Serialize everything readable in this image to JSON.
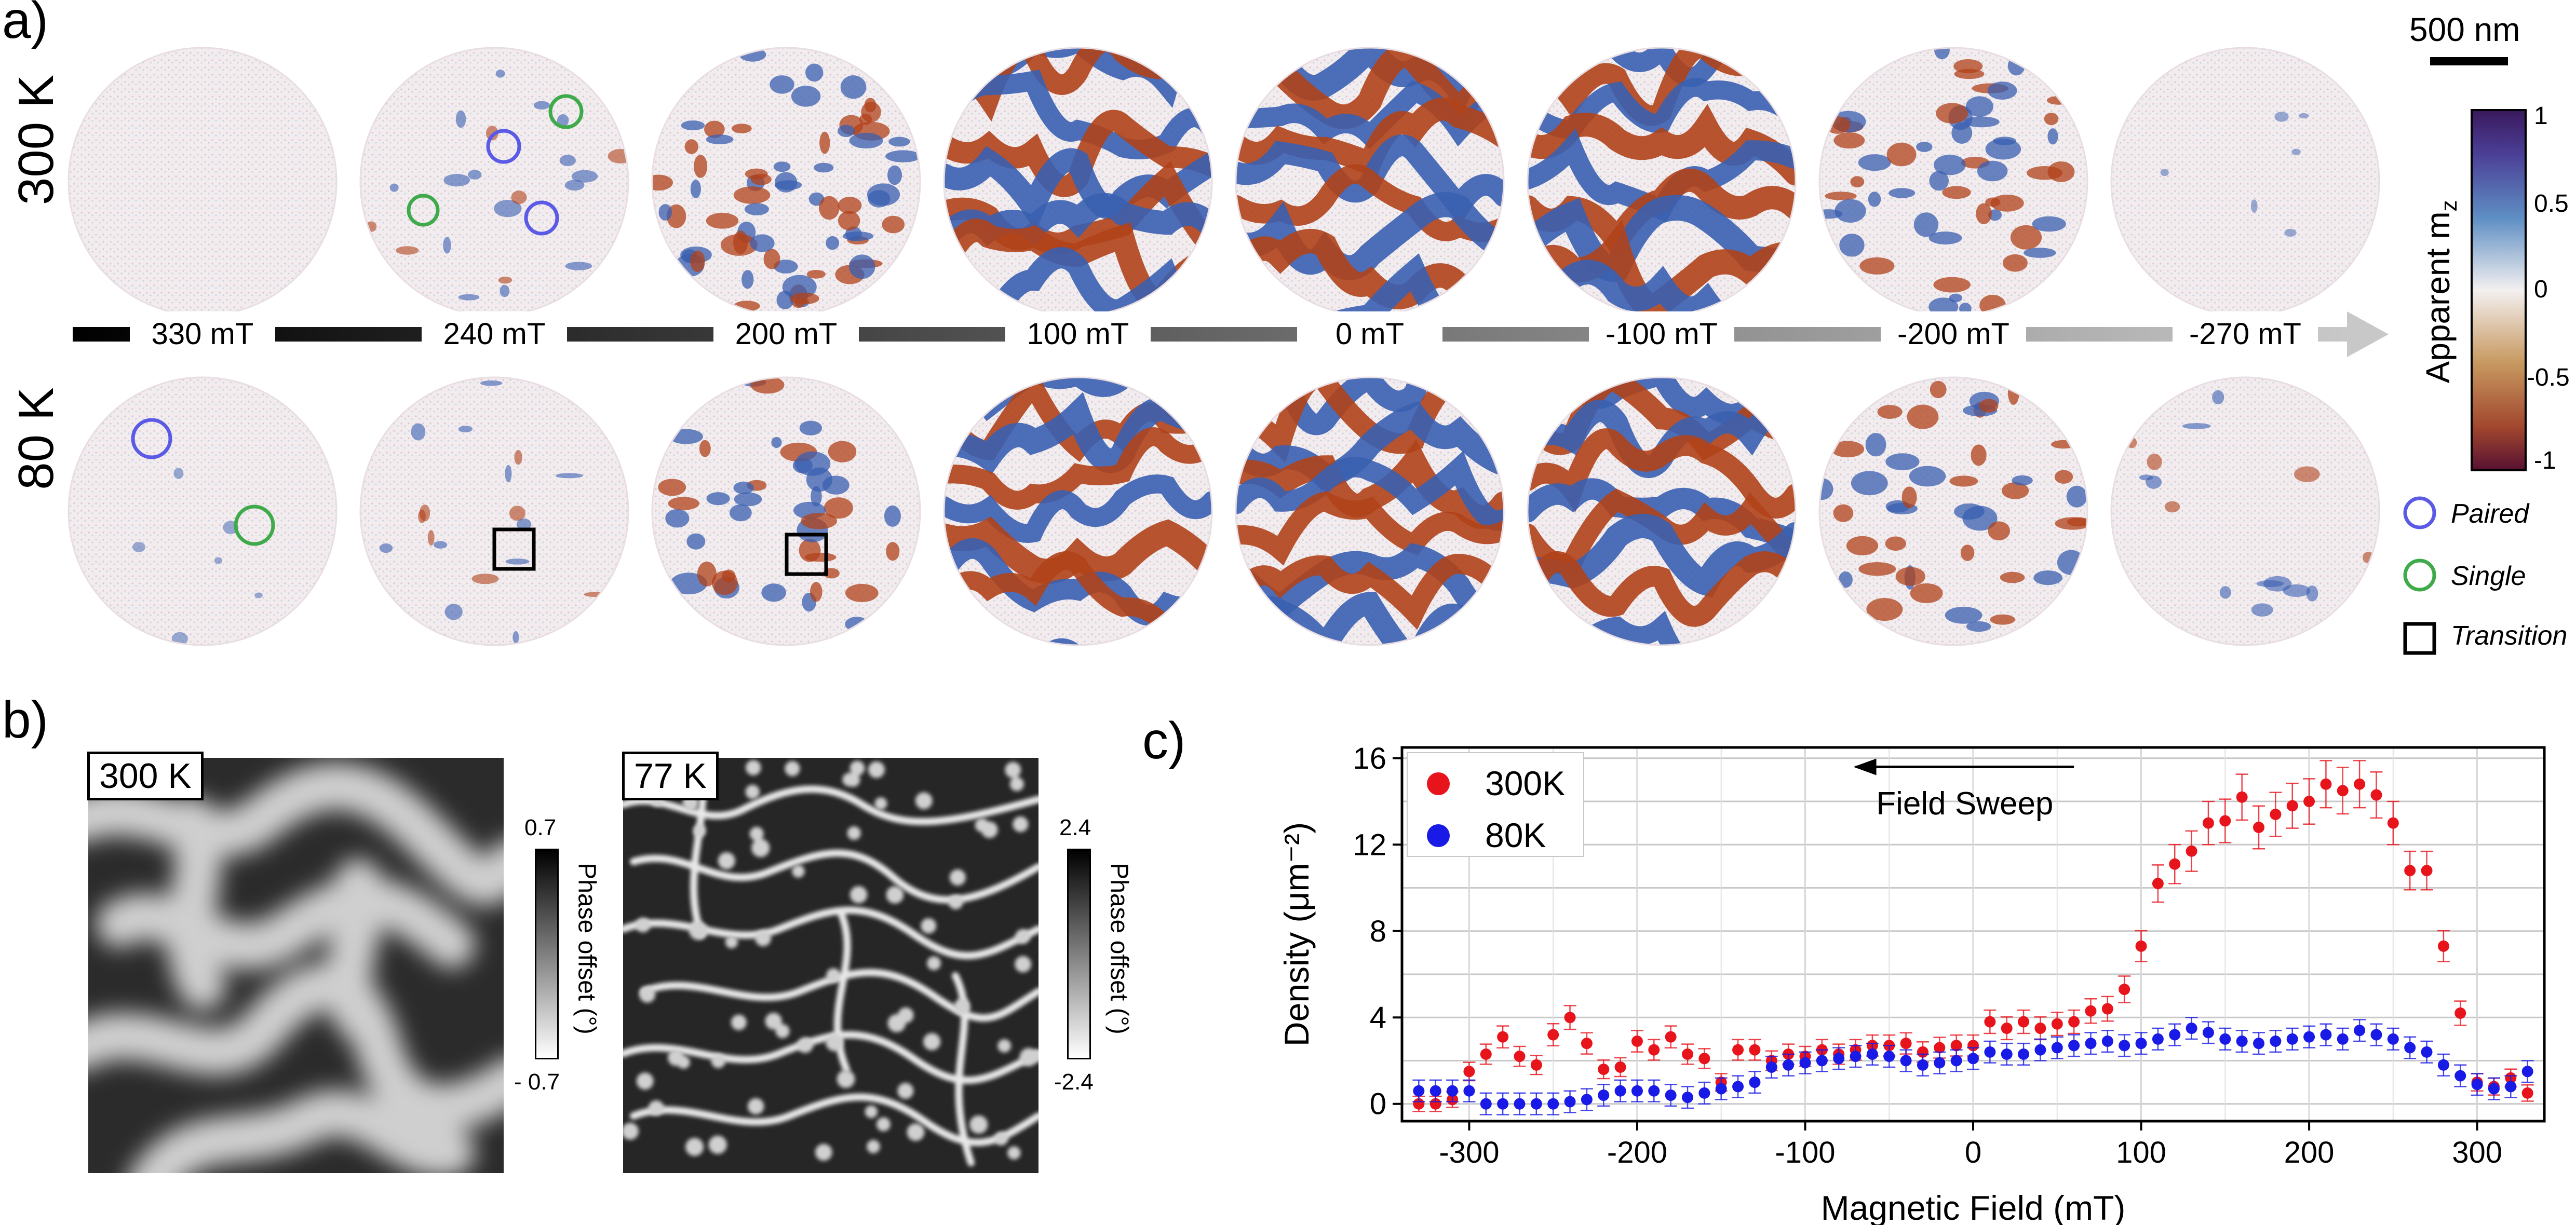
{
  "panel_a": {
    "letter": "a)",
    "row_top_label": "300 K",
    "row_bottom_label": "80 K",
    "fields": [
      "330 mT",
      "240 mT",
      "200 mT",
      "100 mT",
      "0 mT",
      "-100 mT",
      "-200 mT",
      "-270 mT"
    ],
    "scalebar_label": "500 nm",
    "colorbar": {
      "label": "Apparent m",
      "label_sub": "z",
      "ticks": [
        "1",
        "0.5",
        "0",
        "-0.5",
        "-1"
      ]
    },
    "legend": {
      "paired": "Paired",
      "single": "Single",
      "transition": "Transition"
    },
    "colors": {
      "paired": "#5a5ae6",
      "single": "#3faa4a",
      "transition": "#000000",
      "pos": "#b0421a",
      "neg": "#3a5fb0"
    }
  },
  "panel_b": {
    "letter": "b)",
    "left_label": "300 K",
    "right_label": "77 K",
    "left_colorbar": {
      "top": "0.7",
      "bottom": "- 0.7",
      "title": "Phase offset (°)"
    },
    "right_colorbar": {
      "top": "2.4",
      "bottom": "-2.4",
      "title": "Phase offset (°)"
    }
  },
  "panel_c": {
    "letter": "c)",
    "arrow_label": "Field Sweep"
  },
  "chart_data": {
    "type": "scatter",
    "title": "",
    "xlabel": "Magnetic Field (mT)",
    "ylabel": "Density (μm⁻²)",
    "xlim": [
      -340,
      340
    ],
    "ylim": [
      -0.8,
      16.5
    ],
    "xticks": [
      -300,
      -200,
      -100,
      0,
      100,
      200,
      300
    ],
    "yticks": [
      0,
      4,
      8,
      12,
      16
    ],
    "grid": true,
    "legend_position": "top-left",
    "series": [
      {
        "name": "300K",
        "color": "#e8141c",
        "x": [
          -330,
          -320,
          -310,
          -300,
          -290,
          -280,
          -270,
          -260,
          -250,
          -240,
          -230,
          -220,
          -210,
          -200,
          -190,
          -180,
          -170,
          -160,
          -150,
          -140,
          -130,
          -120,
          -110,
          -100,
          -90,
          -80,
          -70,
          -60,
          -50,
          -40,
          -30,
          -20,
          -10,
          0,
          10,
          20,
          30,
          40,
          50,
          60,
          70,
          80,
          90,
          100,
          110,
          120,
          130,
          140,
          150,
          160,
          170,
          180,
          190,
          200,
          210,
          220,
          230,
          240,
          250,
          260,
          270,
          280,
          290,
          300,
          310,
          320,
          330
        ],
        "y": [
          0,
          0,
          0.2,
          1.5,
          2.3,
          3.1,
          2.2,
          1.8,
          3.2,
          4.0,
          2.8,
          1.6,
          1.7,
          2.9,
          2.5,
          3.1,
          2.3,
          2.1,
          1.0,
          2.5,
          2.5,
          2.0,
          2.3,
          2.2,
          2.5,
          2.3,
          2.5,
          2.7,
          2.7,
          2.8,
          2.4,
          2.6,
          2.7,
          2.7,
          3.8,
          3.5,
          3.8,
          3.5,
          3.7,
          3.8,
          4.3,
          4.4,
          5.3,
          7.3,
          10.2,
          11.1,
          11.7,
          13.0,
          13.1,
          14.2,
          12.8,
          13.4,
          13.8,
          14.0,
          14.8,
          14.5,
          14.8,
          14.3,
          13.0,
          10.8,
          10.8,
          7.3,
          4.2,
          1.0,
          0.8,
          1.2,
          0.5
        ]
      },
      {
        "name": "80K",
        "color": "#1a1ae6",
        "x": [
          -330,
          -320,
          -310,
          -300,
          -290,
          -280,
          -270,
          -260,
          -250,
          -240,
          -230,
          -220,
          -210,
          -200,
          -190,
          -180,
          -170,
          -160,
          -150,
          -140,
          -130,
          -120,
          -110,
          -100,
          -90,
          -80,
          -70,
          -60,
          -50,
          -40,
          -30,
          -20,
          -10,
          0,
          10,
          20,
          30,
          40,
          50,
          60,
          70,
          80,
          90,
          100,
          110,
          120,
          130,
          140,
          150,
          160,
          170,
          180,
          190,
          200,
          210,
          220,
          230,
          240,
          250,
          260,
          270,
          280,
          290,
          300,
          310,
          320,
          330
        ],
        "y": [
          0.6,
          0.6,
          0.6,
          0.6,
          0.0,
          0.0,
          0.0,
          0.0,
          0.0,
          0.1,
          0.2,
          0.4,
          0.6,
          0.6,
          0.6,
          0.4,
          0.3,
          0.5,
          0.7,
          0.8,
          1.0,
          1.7,
          1.8,
          1.9,
          2.0,
          2.1,
          2.2,
          2.3,
          2.2,
          2.0,
          1.8,
          1.9,
          2.0,
          2.1,
          2.4,
          2.3,
          2.3,
          2.5,
          2.6,
          2.7,
          2.8,
          2.9,
          2.7,
          2.8,
          3.0,
          3.2,
          3.5,
          3.3,
          3.0,
          2.9,
          2.8,
          2.9,
          3.0,
          3.1,
          3.2,
          3.0,
          3.4,
          3.2,
          3.0,
          2.6,
          2.4,
          1.8,
          1.3,
          0.9,
          0.7,
          0.8,
          1.5
        ]
      }
    ]
  }
}
